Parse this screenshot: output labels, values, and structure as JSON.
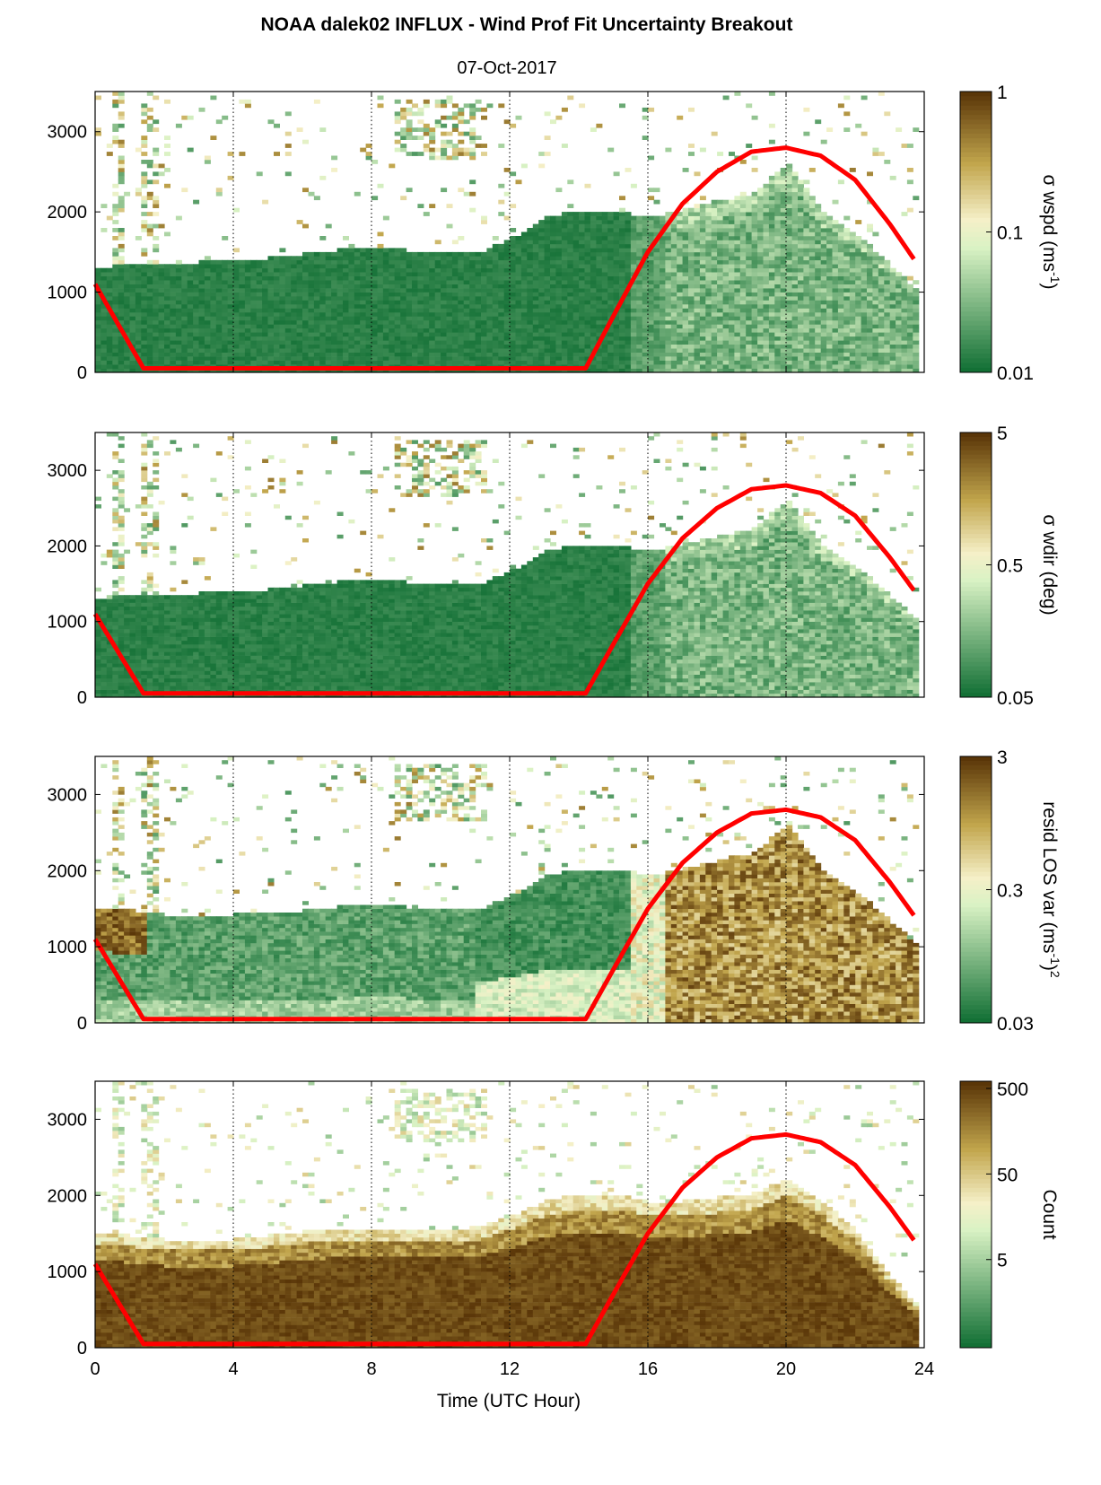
{
  "figure": {
    "title": "NOAA dalek02 INFLUX - Wind Prof Fit Uncertainty Breakout",
    "subtitle": "07-Oct-2017",
    "xlabel": "Time (UTC Hour)"
  },
  "colors": {
    "green_dark": "#0b6b30",
    "green_light": "#d9f2c4",
    "tan": "#c2a64d",
    "brown": "#5a3608",
    "sun_curve": "#ff0000"
  },
  "chart_data": [
    {
      "type": "heatmap",
      "colorbar_label": "σ wspd (ms",
      "colorbar_label_sup": "-1",
      "colorbar_label_tail": ")",
      "colorbar_ticks": [
        "1",
        "0.1",
        "0.01"
      ],
      "colorbar_scale": "log",
      "colorbar_range": [
        0.01,
        1
      ],
      "xlim": [
        0,
        24
      ],
      "ylim": [
        0,
        3500
      ],
      "x_ticks": [
        "0",
        "4",
        "8",
        "12",
        "16",
        "20",
        "24"
      ],
      "y_ticks": [
        "0",
        "1000",
        "2000",
        "3000"
      ],
      "vertical_gridlines": [
        4,
        8,
        12,
        16,
        20
      ],
      "fill_top": [
        [
          0,
          1300
        ],
        [
          0.5,
          1300
        ],
        [
          1,
          1350
        ],
        [
          2,
          1350
        ],
        [
          3,
          1350
        ],
        [
          4,
          1400
        ],
        [
          5,
          1400
        ],
        [
          6,
          1450
        ],
        [
          7,
          1500
        ],
        [
          8,
          1550
        ],
        [
          9,
          1500
        ],
        [
          10,
          1500
        ],
        [
          11,
          1450
        ],
        [
          12,
          1650
        ],
        [
          13,
          1900
        ],
        [
          14,
          2000
        ],
        [
          15,
          2000
        ],
        [
          16,
          1900
        ],
        [
          17,
          2000
        ],
        [
          18,
          2100
        ],
        [
          19,
          2200
        ],
        [
          20,
          2600
        ],
        [
          21,
          2000
        ],
        [
          22,
          1700
        ],
        [
          23,
          1300
        ],
        [
          23.7,
          1000
        ]
      ],
      "sun_curve": [
        [
          0,
          1100
        ],
        [
          1.4,
          50
        ],
        [
          14.2,
          50
        ],
        [
          15,
          700
        ],
        [
          16,
          1500
        ],
        [
          17,
          2100
        ],
        [
          18,
          2500
        ],
        [
          19,
          2750
        ],
        [
          20,
          2800
        ],
        [
          21,
          2700
        ],
        [
          22,
          2400
        ],
        [
          23,
          1850
        ],
        [
          23.8,
          1350
        ]
      ],
      "categories": [
        "low dark green",
        "mid dark green",
        "transition green",
        "sparse upper"
      ]
    },
    {
      "type": "heatmap",
      "colorbar_label": "σ wdir (deg)",
      "colorbar_ticks": [
        "5",
        "0.5",
        "0.05"
      ],
      "colorbar_scale": "log",
      "colorbar_range": [
        0.05,
        5
      ],
      "xlim": [
        0,
        24
      ],
      "ylim": [
        0,
        3500
      ],
      "x_ticks": [
        "0",
        "4",
        "8",
        "12",
        "16",
        "20",
        "24"
      ],
      "y_ticks": [
        "0",
        "1000",
        "2000",
        "3000"
      ],
      "vertical_gridlines": [
        4,
        8,
        12,
        16,
        20
      ],
      "fill_top": [
        [
          0,
          1300
        ],
        [
          0.5,
          1300
        ],
        [
          1,
          1350
        ],
        [
          2,
          1350
        ],
        [
          3,
          1350
        ],
        [
          4,
          1400
        ],
        [
          5,
          1400
        ],
        [
          6,
          1450
        ],
        [
          7,
          1500
        ],
        [
          8,
          1550
        ],
        [
          9,
          1500
        ],
        [
          10,
          1500
        ],
        [
          11,
          1450
        ],
        [
          12,
          1650
        ],
        [
          13,
          1900
        ],
        [
          14,
          2000
        ],
        [
          15,
          2000
        ],
        [
          16,
          1900
        ],
        [
          17,
          2000
        ],
        [
          18,
          2100
        ],
        [
          19,
          2200
        ],
        [
          20,
          2600
        ],
        [
          21,
          2000
        ],
        [
          22,
          1700
        ],
        [
          23,
          1300
        ],
        [
          23.7,
          1000
        ]
      ],
      "sun_curve": [
        [
          0,
          1100
        ],
        [
          1.4,
          50
        ],
        [
          14.2,
          50
        ],
        [
          15,
          700
        ],
        [
          16,
          1500
        ],
        [
          17,
          2100
        ],
        [
          18,
          2500
        ],
        [
          19,
          2750
        ],
        [
          20,
          2800
        ],
        [
          21,
          2700
        ],
        [
          22,
          2400
        ],
        [
          23,
          1850
        ],
        [
          23.8,
          1350
        ]
      ]
    },
    {
      "type": "heatmap",
      "colorbar_label": "resid LOS var (ms",
      "colorbar_label_sup": "-1",
      "colorbar_label_tail": ")",
      "colorbar_label_sup2": "2",
      "colorbar_ticks": [
        "3",
        "0.3",
        "0.03"
      ],
      "colorbar_scale": "log",
      "colorbar_range": [
        0.03,
        3
      ],
      "xlim": [
        0,
        24
      ],
      "ylim": [
        0,
        3500
      ],
      "x_ticks": [
        "0",
        "4",
        "8",
        "12",
        "16",
        "20",
        "24"
      ],
      "y_ticks": [
        "0",
        "1000",
        "2000",
        "3000"
      ],
      "vertical_gridlines": [
        4,
        8,
        12,
        16,
        20
      ],
      "fill_top": [
        [
          0,
          1500
        ],
        [
          0.5,
          1500
        ],
        [
          1,
          1450
        ],
        [
          2,
          1400
        ],
        [
          3,
          1400
        ],
        [
          4,
          1400
        ],
        [
          5,
          1450
        ],
        [
          6,
          1450
        ],
        [
          7,
          1500
        ],
        [
          8,
          1550
        ],
        [
          9,
          1500
        ],
        [
          10,
          1500
        ],
        [
          11,
          1450
        ],
        [
          12,
          1650
        ],
        [
          13,
          1900
        ],
        [
          14,
          2000
        ],
        [
          15,
          2000
        ],
        [
          16,
          1900
        ],
        [
          17,
          2000
        ],
        [
          18,
          2100
        ],
        [
          19,
          2200
        ],
        [
          20,
          2600
        ],
        [
          21,
          2000
        ],
        [
          22,
          1700
        ],
        [
          23,
          1300
        ],
        [
          23.7,
          1000
        ]
      ],
      "sun_curve": [
        [
          0,
          1100
        ],
        [
          1.4,
          50
        ],
        [
          14.2,
          50
        ],
        [
          15,
          700
        ],
        [
          16,
          1500
        ],
        [
          17,
          2100
        ],
        [
          18,
          2500
        ],
        [
          19,
          2750
        ],
        [
          20,
          2800
        ],
        [
          21,
          2700
        ],
        [
          22,
          2400
        ],
        [
          23,
          1850
        ],
        [
          23.8,
          1350
        ]
      ]
    },
    {
      "type": "heatmap",
      "colorbar_label": "Count",
      "colorbar_ticks": [
        "500",
        "50",
        "5"
      ],
      "colorbar_scale": "log",
      "colorbar_range": [
        1,
        500
      ],
      "xlim": [
        0,
        24
      ],
      "ylim": [
        0,
        3500
      ],
      "x_ticks": [
        "0",
        "4",
        "8",
        "12",
        "16",
        "20",
        "24"
      ],
      "y_ticks": [
        "0",
        "1000",
        "2000",
        "3000"
      ],
      "vertical_gridlines": [
        4,
        8,
        12,
        16,
        20
      ],
      "fill_top": [
        [
          0,
          1500
        ],
        [
          0.5,
          1500
        ],
        [
          1,
          1450
        ],
        [
          2,
          1400
        ],
        [
          3,
          1400
        ],
        [
          4,
          1400
        ],
        [
          5,
          1450
        ],
        [
          6,
          1500
        ],
        [
          7,
          1550
        ],
        [
          8,
          1550
        ],
        [
          9,
          1550
        ],
        [
          10,
          1550
        ],
        [
          11,
          1550
        ],
        [
          12,
          1700
        ],
        [
          13,
          1900
        ],
        [
          14,
          2000
        ],
        [
          15,
          2000
        ],
        [
          16,
          1900
        ],
        [
          17,
          1900
        ],
        [
          18,
          1950
        ],
        [
          19,
          2000
        ],
        [
          20,
          2200
        ],
        [
          21,
          1900
        ],
        [
          22,
          1500
        ],
        [
          23,
          900
        ],
        [
          23.7,
          500
        ]
      ],
      "sun_curve": [
        [
          0,
          1100
        ],
        [
          1.4,
          50
        ],
        [
          14.2,
          50
        ],
        [
          15,
          700
        ],
        [
          16,
          1500
        ],
        [
          17,
          2100
        ],
        [
          18,
          2500
        ],
        [
          19,
          2750
        ],
        [
          20,
          2800
        ],
        [
          21,
          2700
        ],
        [
          22,
          2400
        ],
        [
          23,
          1850
        ],
        [
          23.8,
          1350
        ]
      ]
    }
  ]
}
